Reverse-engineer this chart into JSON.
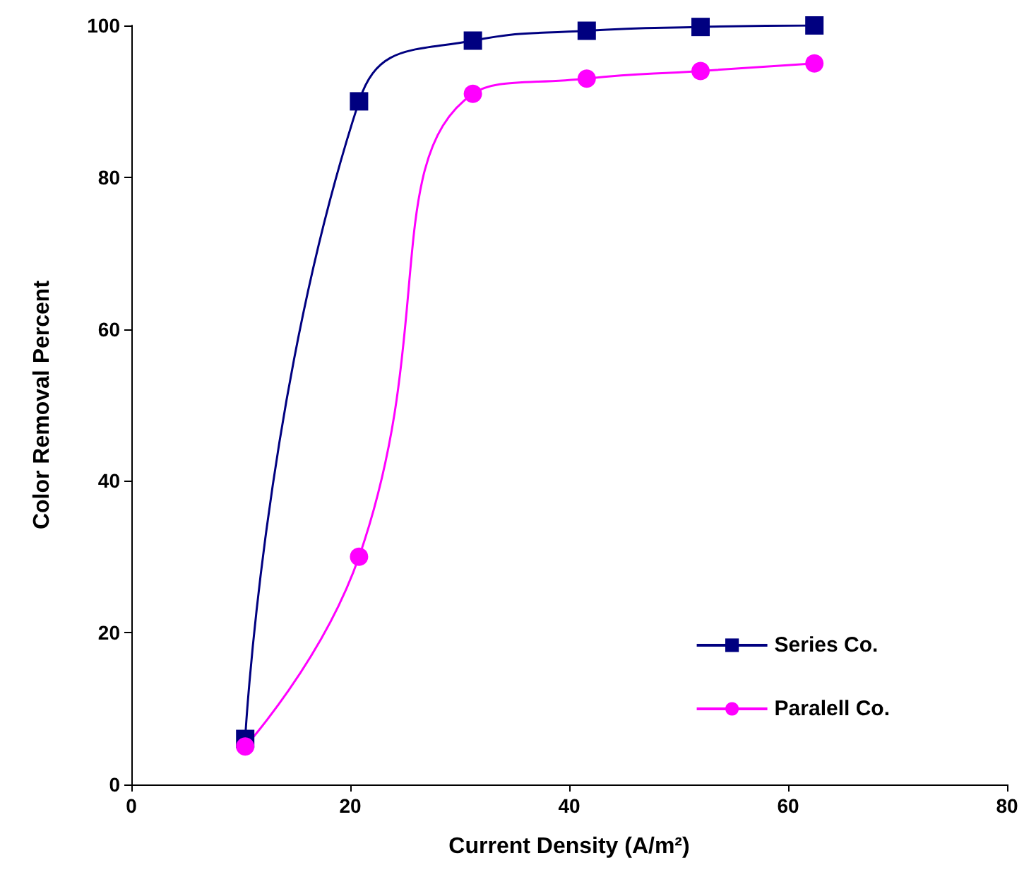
{
  "chart_data": {
    "type": "line",
    "xlabel": "Current Density (A/m²)",
    "ylabel": "Color Removal Percent",
    "x": [
      10.4,
      20.8,
      31.2,
      41.6,
      52,
      62.4
    ],
    "series": [
      {
        "name": "Series Co.",
        "color": "#000080",
        "marker": "square",
        "values": [
          6,
          90,
          98,
          99.3,
          99.8,
          100
        ]
      },
      {
        "name": "Paralell Co.",
        "color": "#ff00ff",
        "marker": "circle",
        "values": [
          5,
          30,
          91,
          93,
          94,
          95
        ]
      }
    ],
    "xlim": [
      0,
      80
    ],
    "xticks": [
      0,
      20,
      40,
      60,
      80
    ],
    "ylim": [
      0,
      100
    ],
    "yticks": [
      0,
      20,
      40,
      60,
      80,
      100
    ],
    "grid": false,
    "legend": "bottom right",
    "line_style": "solid"
  }
}
